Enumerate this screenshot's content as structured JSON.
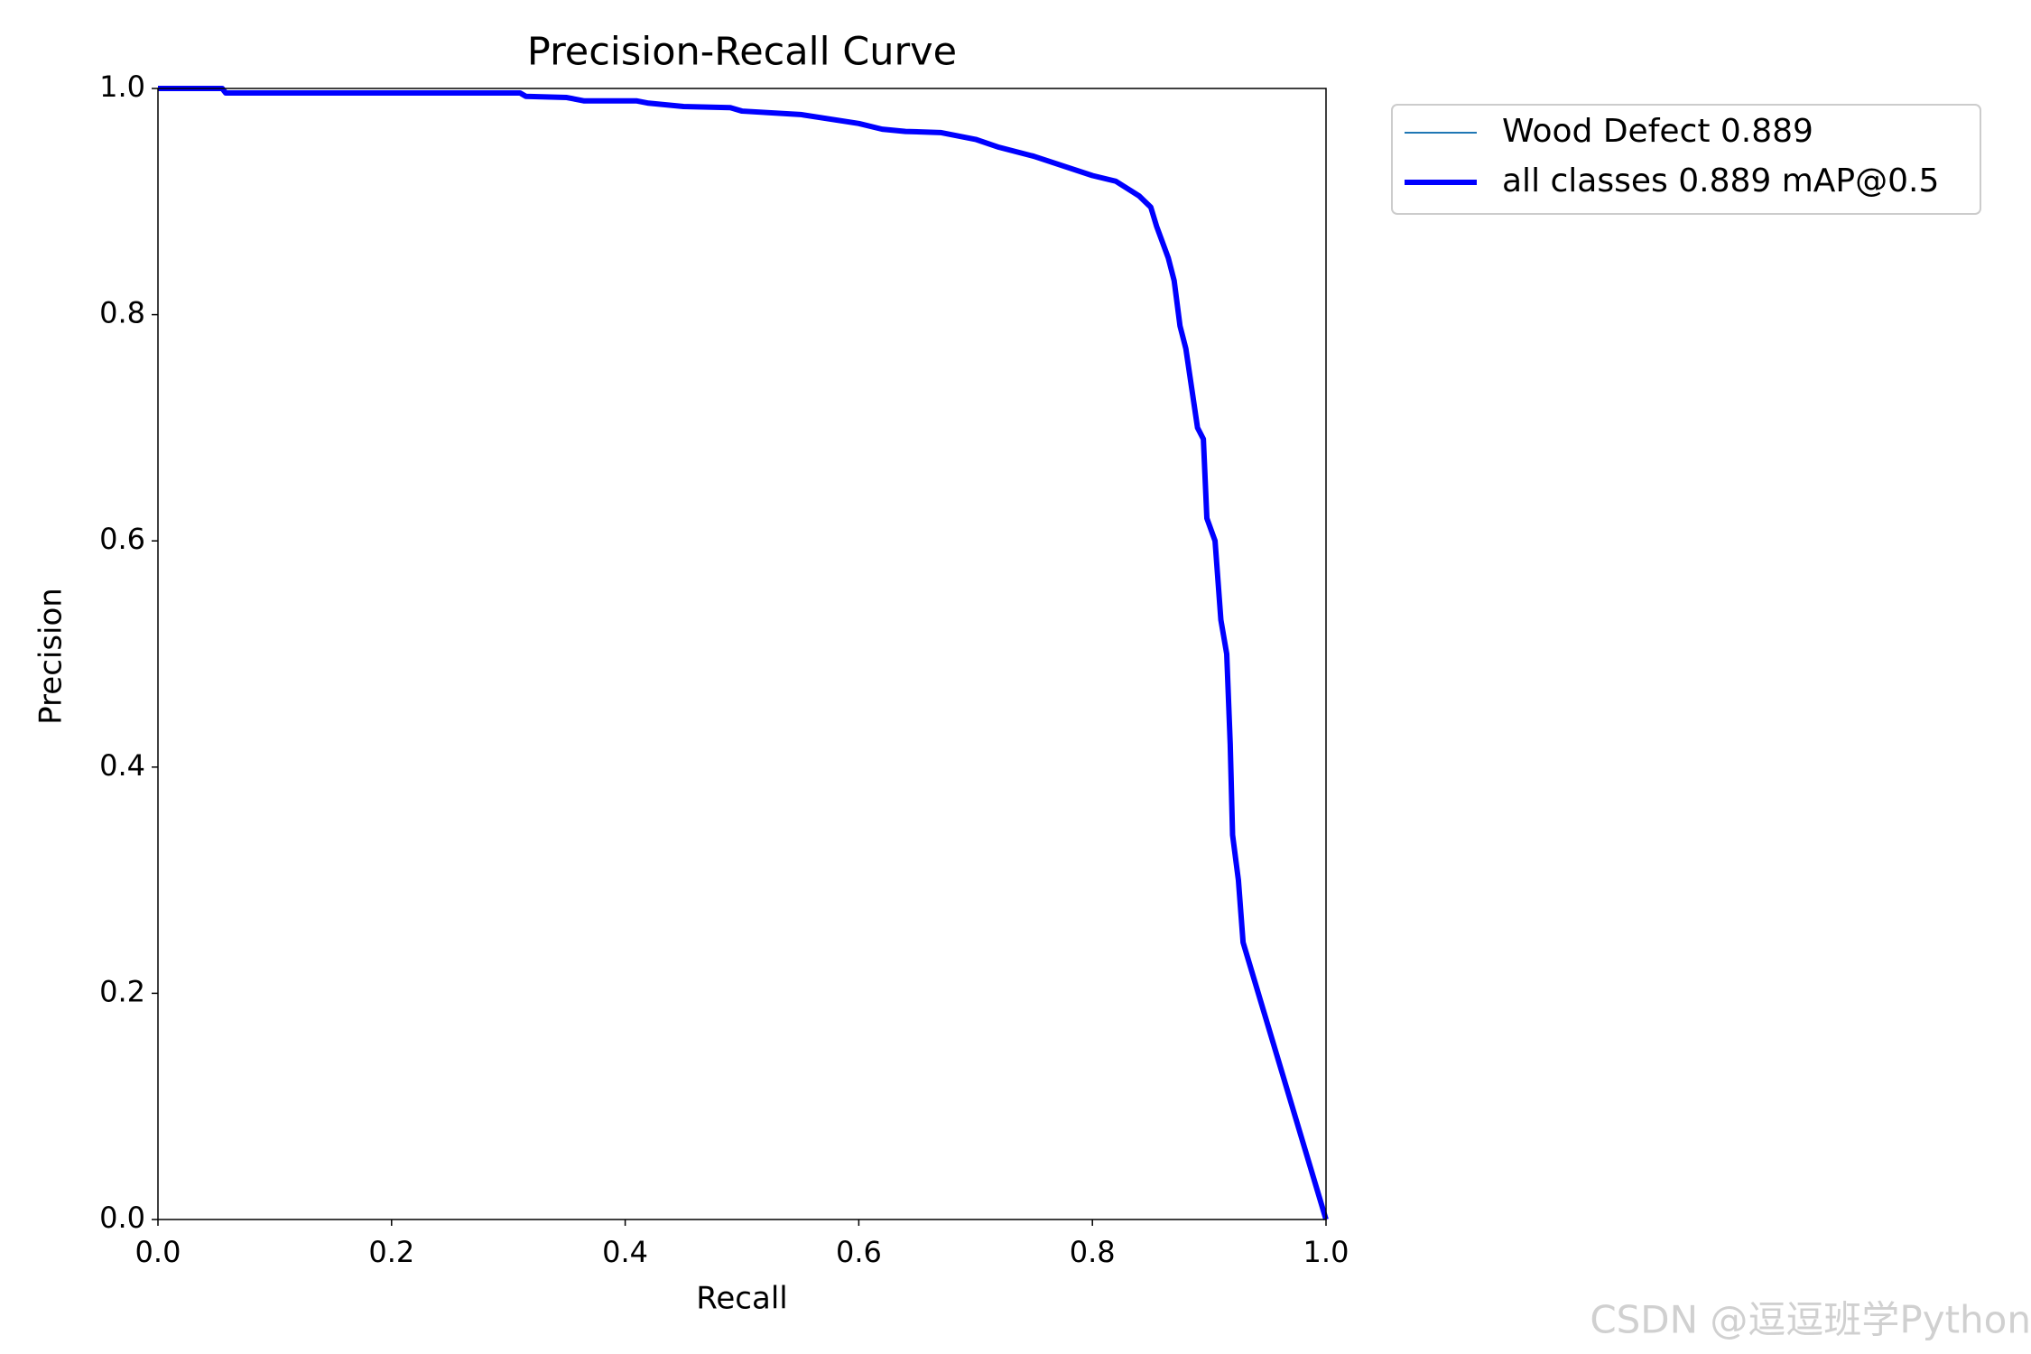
{
  "chart_data": {
    "type": "line",
    "title": "Precision-Recall Curve",
    "x_label": "Recall",
    "y_label": "Precision",
    "x": [
      0,
      0.055,
      0.058,
      0.31,
      0.315,
      0.35,
      0.365,
      0.41,
      0.42,
      0.45,
      0.49,
      0.5,
      0.55,
      0.6,
      0.62,
      0.64,
      0.67,
      0.7,
      0.72,
      0.75,
      0.8,
      0.82,
      0.84,
      0.85,
      0.855,
      0.865,
      0.87,
      0.875,
      0.88,
      0.885,
      0.89,
      0.895,
      0.898,
      0.905,
      0.91,
      0.915,
      0.918,
      0.92,
      0.925,
      0.929,
      1.0
    ],
    "series": [
      {
        "name": "Wood Defect 0.889",
        "color": "#1f77b4",
        "values": [
          1.0,
          1.0,
          0.996,
          0.996,
          0.993,
          0.992,
          0.989,
          0.989,
          0.987,
          0.984,
          0.983,
          0.98,
          0.977,
          0.969,
          0.964,
          0.962,
          0.961,
          0.955,
          0.948,
          0.94,
          0.923,
          0.918,
          0.905,
          0.895,
          0.878,
          0.85,
          0.83,
          0.79,
          0.77,
          0.735,
          0.7,
          0.69,
          0.62,
          0.6,
          0.53,
          0.5,
          0.42,
          0.34,
          0.3,
          0.245,
          0.0
        ]
      },
      {
        "name": "all classes 0.889 mAP@0.5",
        "color": "#0000ff",
        "values": [
          1.0,
          1.0,
          0.996,
          0.996,
          0.993,
          0.992,
          0.989,
          0.989,
          0.987,
          0.984,
          0.983,
          0.98,
          0.977,
          0.969,
          0.964,
          0.962,
          0.961,
          0.955,
          0.948,
          0.94,
          0.923,
          0.918,
          0.905,
          0.895,
          0.878,
          0.85,
          0.83,
          0.79,
          0.77,
          0.735,
          0.7,
          0.69,
          0.62,
          0.6,
          0.53,
          0.5,
          0.42,
          0.34,
          0.3,
          0.245,
          0.0
        ]
      }
    ],
    "xlim": [
      0,
      1
    ],
    "ylim": [
      0,
      1
    ],
    "xticks": [
      {
        "value": 0,
        "label": "0.0"
      },
      0.2,
      0.4,
      0.6,
      0.8,
      {
        "value": 1,
        "label": "1.0"
      }
    ],
    "yticks": [
      {
        "value": 0,
        "label": "0.0"
      },
      0.2,
      0.4,
      0.6,
      0.8,
      {
        "value": 1,
        "label": "1.0"
      }
    ],
    "grid": false,
    "watermark": "CSDN @逗逗班学Python"
  }
}
